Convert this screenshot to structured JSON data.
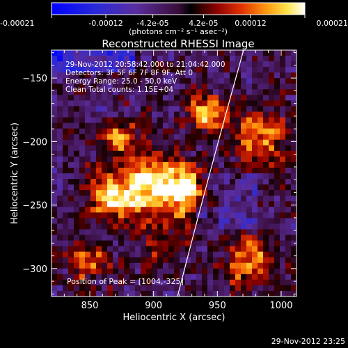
{
  "colorbar": {
    "ticks": [
      "-0.00021",
      "-0.00012",
      "-4.2e-05",
      "4.2e-05",
      "0.00012",
      "0.00021"
    ],
    "tick_values": [
      -0.00021,
      -0.00012,
      -4.2e-05,
      4.2e-05,
      0.00012,
      0.00021
    ],
    "range": [
      -0.00021,
      0.00021
    ],
    "units_label": "(photons cm⁻² s⁻¹ asec⁻²)"
  },
  "chart_data": {
    "type": "heatmap",
    "title": "Reconstructed RHESSI Image",
    "xlabel": "Heliocentric X (arcsec)",
    "ylabel": "Heliocentric Y (arcsec)",
    "xlim": [
      820,
      1012
    ],
    "ylim": [
      -322,
      -128
    ],
    "xticks": [
      850,
      900,
      950,
      1000
    ],
    "yticks": [
      -300,
      -250,
      -200,
      -150
    ],
    "xtick_labels": [
      "850",
      "900",
      "950",
      "1000"
    ],
    "ytick_labels": [
      "−300",
      "−250",
      "−200",
      "−150"
    ],
    "annotations": [
      "29-Nov-2012 20:58:42.000 to 21:04:42.000",
      "Detectors: 3F 5F 6F 7F 8F 9F, Att 0",
      "Energy Range: 25.0 - 50.0 keV",
      "Clean     Total counts: 1.15E+04"
    ],
    "peak_label": "Position of Peak = [1004,-325]",
    "peak_position": [
      1004,
      -325
    ]
  },
  "footer": {
    "timestamp": "29-Nov-2012 23:25"
  }
}
